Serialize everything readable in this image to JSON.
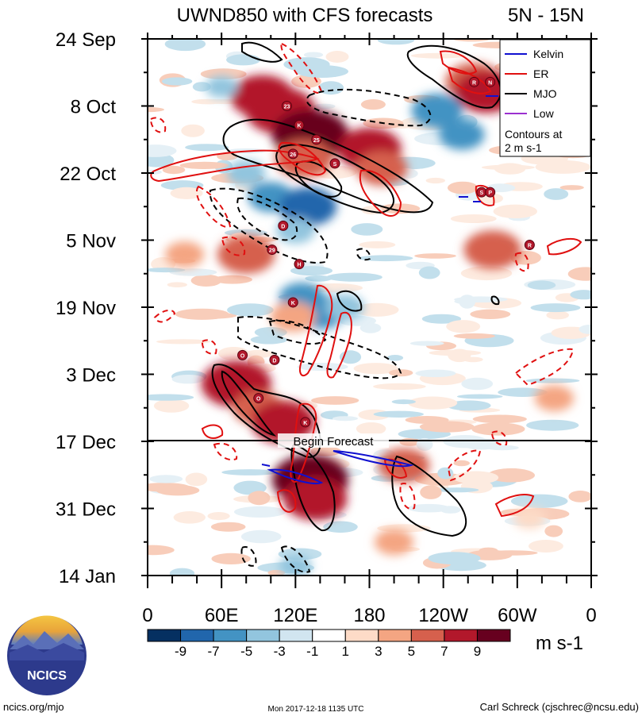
{
  "chart_data": {
    "type": "heatmap",
    "title": "UWND850 with CFS forecasts",
    "subtitle": "5N - 15N",
    "x_ticks": [
      "0",
      "60E",
      "120E",
      "180",
      "120W",
      "60W",
      "0"
    ],
    "x_range_deg_east": [
      0,
      360
    ],
    "y_ticks": [
      "24 Sep",
      "8 Oct",
      "22 Oct",
      "5 Nov",
      "19 Nov",
      "3 Dec",
      "17 Dec",
      "31 Dec",
      "14 Jan"
    ],
    "y_range_days_from_24_sep": [
      0,
      112
    ],
    "units": "m s-1",
    "colorbar": {
      "labels": [
        "-9",
        "-7",
        "-5",
        "-3",
        "-1",
        "1",
        "3",
        "5",
        "7",
        "9"
      ],
      "colors": [
        "#053061",
        "#2166ac",
        "#4393c3",
        "#92c5de",
        "#d1e5f0",
        "#ffffff",
        "#fddbc7",
        "#f4a582",
        "#d6604d",
        "#b2182b",
        "#67001f"
      ]
    },
    "legend": {
      "entries": [
        {
          "name": "Kelvin",
          "color": "#1010d0"
        },
        {
          "name": "ER",
          "color": "#e01010"
        },
        {
          "name": "MJO",
          "color": "#000000"
        },
        {
          "name": "Low",
          "color": "#9b30d0"
        }
      ],
      "note_line1": "Contours at",
      "note_line2": "2 m s-1",
      "placement": "top-right"
    },
    "forecast_start_label": "Begin Forecast",
    "forecast_start_day": 84,
    "anomaly_blobs": [
      {
        "lon": 93,
        "day": 12,
        "v": 8
      },
      {
        "lon": 108,
        "day": 15,
        "v": 9
      },
      {
        "lon": 132,
        "day": 20,
        "v": 10
      },
      {
        "lon": 127,
        "day": 25,
        "v": 7
      },
      {
        "lon": 180,
        "day": 23,
        "v": 8
      },
      {
        "lon": 190,
        "day": 27,
        "v": 6
      },
      {
        "lon": 265,
        "day": 9,
        "v": 7
      },
      {
        "lon": 275,
        "day": 11,
        "v": 8
      },
      {
        "lon": 235,
        "day": 15,
        "v": -6
      },
      {
        "lon": 255,
        "day": 20,
        "v": -5
      },
      {
        "lon": 100,
        "day": 33,
        "v": -5
      },
      {
        "lon": 130,
        "day": 35,
        "v": -7
      },
      {
        "lon": 120,
        "day": 40,
        "v": -4
      },
      {
        "lon": 80,
        "day": 28,
        "v": -4
      },
      {
        "lon": 80,
        "day": 45,
        "v": 7
      },
      {
        "lon": 280,
        "day": 44,
        "v": 7
      },
      {
        "lon": 125,
        "day": 54,
        "v": -5
      },
      {
        "lon": 140,
        "day": 57,
        "v": -6
      },
      {
        "lon": 160,
        "day": 56,
        "v": -4
      },
      {
        "lon": 118,
        "day": 58,
        "v": 5
      },
      {
        "lon": 72,
        "day": 72,
        "v": 9
      },
      {
        "lon": 90,
        "day": 77,
        "v": 6
      },
      {
        "lon": 110,
        "day": 80,
        "v": 8
      },
      {
        "lon": 132,
        "day": 92,
        "v": 10
      },
      {
        "lon": 136,
        "day": 96,
        "v": 8
      },
      {
        "lon": 208,
        "day": 89,
        "v": 6
      },
      {
        "lon": 120,
        "day": 110,
        "v": -3
      },
      {
        "lon": 60,
        "day": 10,
        "v": -3
      },
      {
        "lon": 30,
        "day": 45,
        "v": 4
      },
      {
        "lon": 330,
        "day": 75,
        "v": 4
      },
      {
        "lon": 200,
        "day": 105,
        "v": 4
      },
      {
        "lon": 310,
        "day": 100,
        "v": 3
      }
    ],
    "storm_markers": [
      {
        "label": "23",
        "lon": 113,
        "day": 14
      },
      {
        "label": "K",
        "lon": 123,
        "day": 18
      },
      {
        "label": "25",
        "lon": 137,
        "day": 21
      },
      {
        "label": "26",
        "lon": 118,
        "day": 24
      },
      {
        "label": "S",
        "lon": 152,
        "day": 26
      },
      {
        "label": "R",
        "lon": 265,
        "day": 9
      },
      {
        "label": "N",
        "lon": 278,
        "day": 9
      },
      {
        "label": "S",
        "lon": 271,
        "day": 32
      },
      {
        "label": "P",
        "lon": 278,
        "day": 32
      },
      {
        "label": "R",
        "lon": 310,
        "day": 43
      },
      {
        "label": "D",
        "lon": 110,
        "day": 39
      },
      {
        "label": "29",
        "lon": 101,
        "day": 44
      },
      {
        "label": "H",
        "lon": 123,
        "day": 47
      },
      {
        "label": "K",
        "lon": 118,
        "day": 55
      },
      {
        "label": "O",
        "lon": 77,
        "day": 66
      },
      {
        "label": "D",
        "lon": 103,
        "day": 67
      },
      {
        "label": "O",
        "lon": 90,
        "day": 75
      },
      {
        "label": "K",
        "lon": 128,
        "day": 80
      }
    ]
  },
  "footer": {
    "left": "ncics.org/mjo",
    "center": "Mon 2017-12-18 1135 UTC",
    "right": "Carl Schreck (cjschrec@ncsu.edu)",
    "logo_text": "NCICS"
  }
}
